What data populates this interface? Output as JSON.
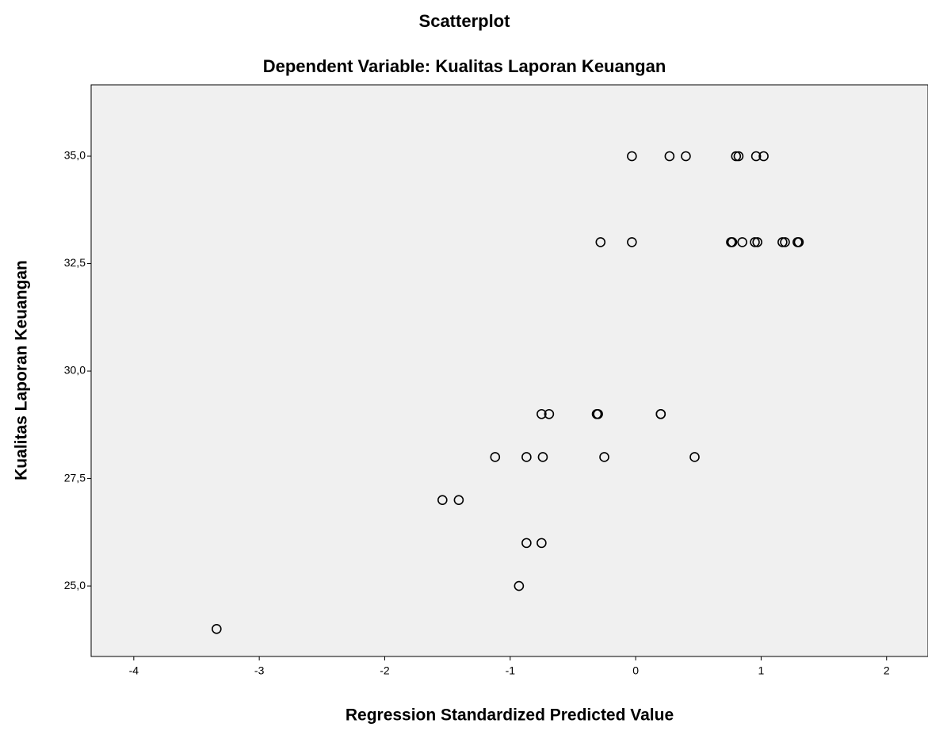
{
  "chart_data": {
    "type": "scatter",
    "title": "Scatterplot",
    "subtitle": "Dependent Variable: Kualitas Laporan Keuangan",
    "x_label": "Regression Standardized Predicted Value",
    "y_label": "Kualitas Laporan Keuangan",
    "xlim": [
      -4.34,
      2.33
    ],
    "xticks": [
      -4,
      -3,
      -2,
      -1,
      0,
      1,
      2
    ],
    "ylim": [
      23.36,
      36.66
    ],
    "yticks": [
      {
        "value": 25,
        "label": "25,0"
      },
      {
        "value": 27.5,
        "label": "27,5"
      },
      {
        "value": 30,
        "label": "30,0"
      },
      {
        "value": 32.5,
        "label": "32,5"
      },
      {
        "value": 35,
        "label": "35,0"
      }
    ],
    "grid": false,
    "background": "#f0f0f0",
    "series": [
      {
        "color": "#000000",
        "x": [
          -0.03,
          0.27,
          0.4,
          0.8,
          0.82,
          0.96,
          1.02,
          -0.28,
          -0.03,
          0.76,
          0.77,
          0.85,
          0.95,
          0.97,
          1.17,
          1.19,
          1.29,
          1.3,
          -0.75,
          -0.69,
          -0.31,
          -0.3,
          0.2,
          0.2,
          -1.12,
          -0.87,
          -0.74,
          -0.25,
          0.47,
          -1.54,
          -1.41,
          -0.87,
          -0.75,
          -0.93,
          -3.34
        ],
        "values": [
          35,
          35,
          35,
          35,
          35,
          35,
          35,
          33,
          33,
          33,
          33,
          33,
          33,
          33,
          33,
          33,
          33,
          33,
          29,
          29,
          29,
          29,
          29,
          29,
          28,
          28,
          28,
          28,
          28,
          27,
          27,
          26,
          26,
          25,
          24
        ]
      }
    ]
  }
}
